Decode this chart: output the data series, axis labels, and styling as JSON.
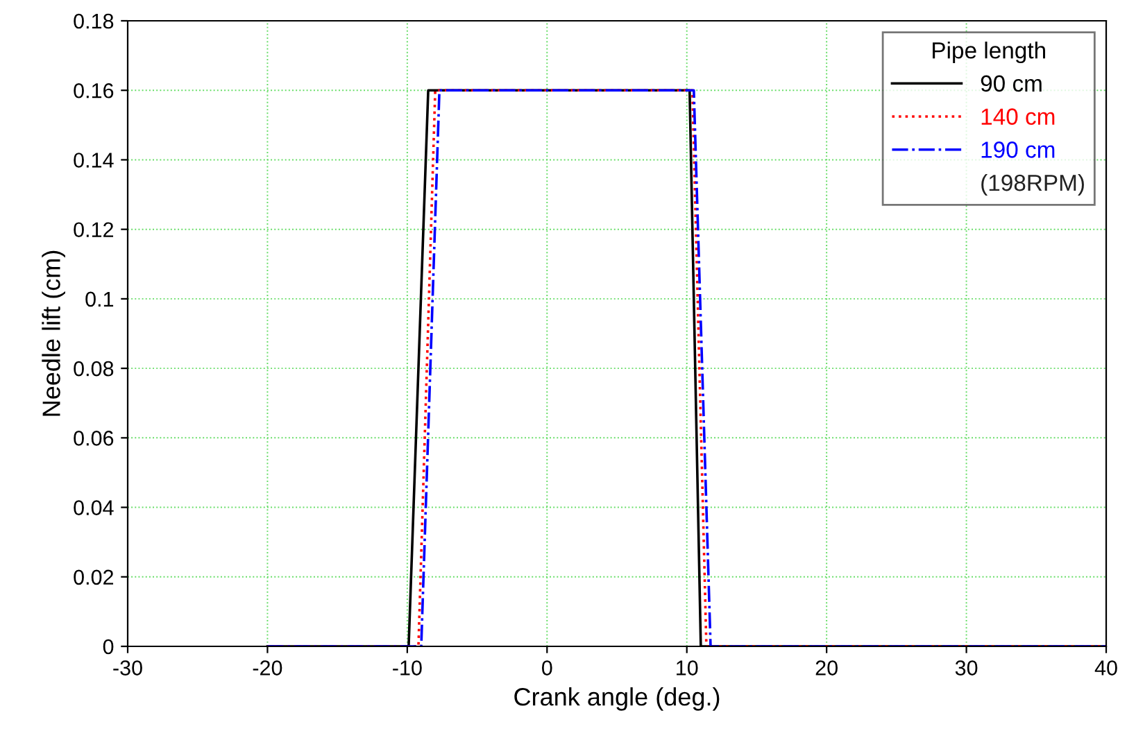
{
  "chart_data": {
    "type": "line",
    "xlabel": "Crank angle (deg.)",
    "ylabel": "Needle lift (cm)",
    "legend_title": "Pipe length",
    "annotations": [
      "(198RPM)"
    ],
    "series": [
      {
        "name": "90 cm",
        "color": "#000000",
        "line_style": "solid",
        "x": [
          -20,
          -9.9,
          -8.5,
          10.2,
          11.0,
          40
        ],
        "values": [
          0,
          0,
          0.16,
          0.16,
          0,
          0
        ]
      },
      {
        "name": "140 cm",
        "color": "#ff0000",
        "line_style": "dotted",
        "x": [
          -20,
          -9.2,
          -8.0,
          10.4,
          11.4,
          40
        ],
        "values": [
          0,
          0,
          0.16,
          0.16,
          0,
          0
        ]
      },
      {
        "name": "190 cm",
        "color": "#0000ff",
        "line_style": "dashdot",
        "x": [
          -20,
          -9.0,
          -7.7,
          10.5,
          11.7,
          40
        ],
        "values": [
          0,
          0,
          0.16,
          0.16,
          0,
          0
        ]
      }
    ],
    "xlim": [
      -30,
      40
    ],
    "xticks": [
      -30,
      -20,
      -10,
      0,
      10,
      20,
      30,
      40
    ],
    "ylim": [
      0,
      0.18
    ],
    "yticks": [
      0,
      0.02,
      0.04,
      0.06,
      0.08,
      0.1,
      0.12,
      0.14,
      0.16,
      0.18
    ],
    "grid": true,
    "legend": "top right"
  }
}
